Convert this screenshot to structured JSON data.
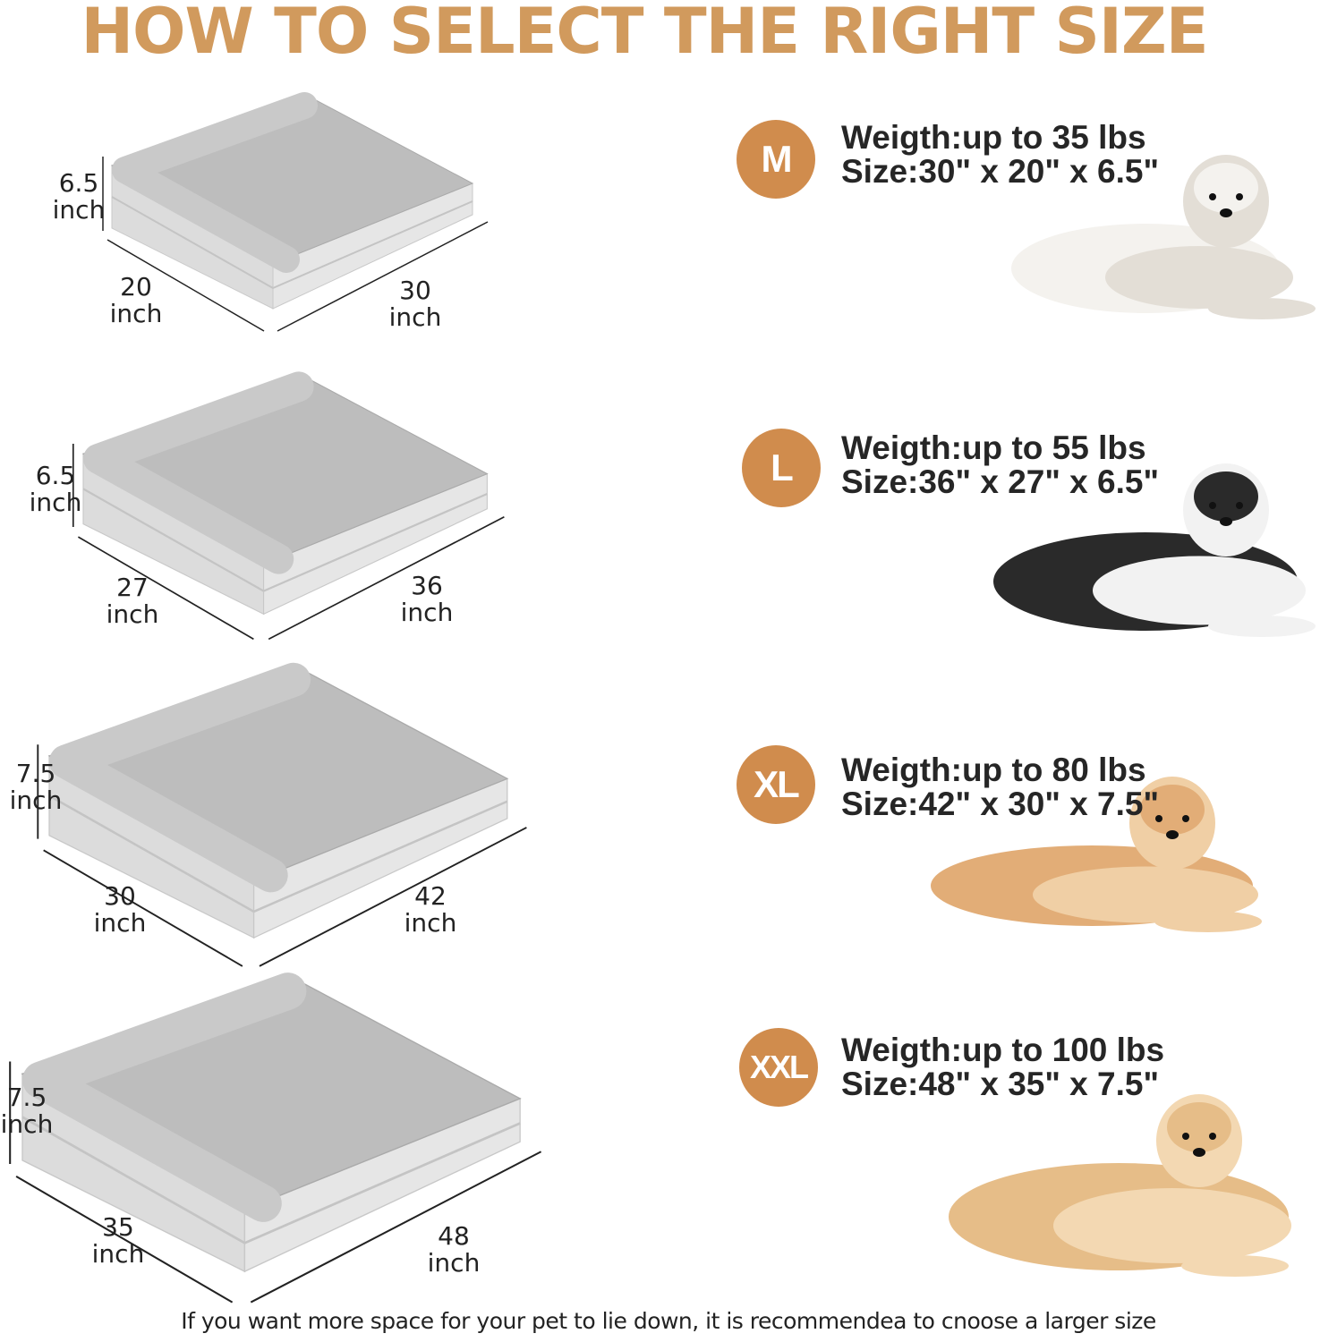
{
  "title": "HOW TO SELECT THE RIGHT SIZE",
  "colors": {
    "title": "#d19a5d",
    "badge": "#d08c4d",
    "text": "#262626",
    "bed": "#d9d9d9"
  },
  "sizes": [
    {
      "badge": "M",
      "weight": "Weigth:up to 35 lbs",
      "size": "Size:30\" x 20\" x 6.5\"",
      "height_label": [
        "6.5",
        "inch"
      ],
      "width_label": [
        "20",
        "inch"
      ],
      "length_label": [
        "30",
        "inch"
      ],
      "dog": "bichon-frise"
    },
    {
      "badge": "L",
      "weight": "Weigth:up to 55 lbs",
      "size": "Size:36\" x 27\" x 6.5\"",
      "height_label": [
        "6.5",
        "inch"
      ],
      "width_label": [
        "27",
        "inch"
      ],
      "length_label": [
        "36",
        "inch"
      ],
      "dog": "husky"
    },
    {
      "badge": "XL",
      "weight": "Weigth:up to 80 lbs",
      "size": "Size:42\" x 30\" x 7.5\"",
      "height_label": [
        "7.5",
        "inch"
      ],
      "width_label": [
        "30",
        "inch"
      ],
      "length_label": [
        "42",
        "inch"
      ],
      "dog": "golden-retriever"
    },
    {
      "badge": "XXL",
      "weight": "Weigth:up to 100 lbs",
      "size": "Size:48\" x 35\" x 7.5\"",
      "height_label": [
        "7.5",
        "inch"
      ],
      "width_label": [
        "35",
        "inch"
      ],
      "length_label": [
        "48",
        "inch"
      ],
      "dog": "labrador"
    }
  ],
  "footer": "If you want more space for your pet to lie down, it is recommendea to cnoose a larger size"
}
